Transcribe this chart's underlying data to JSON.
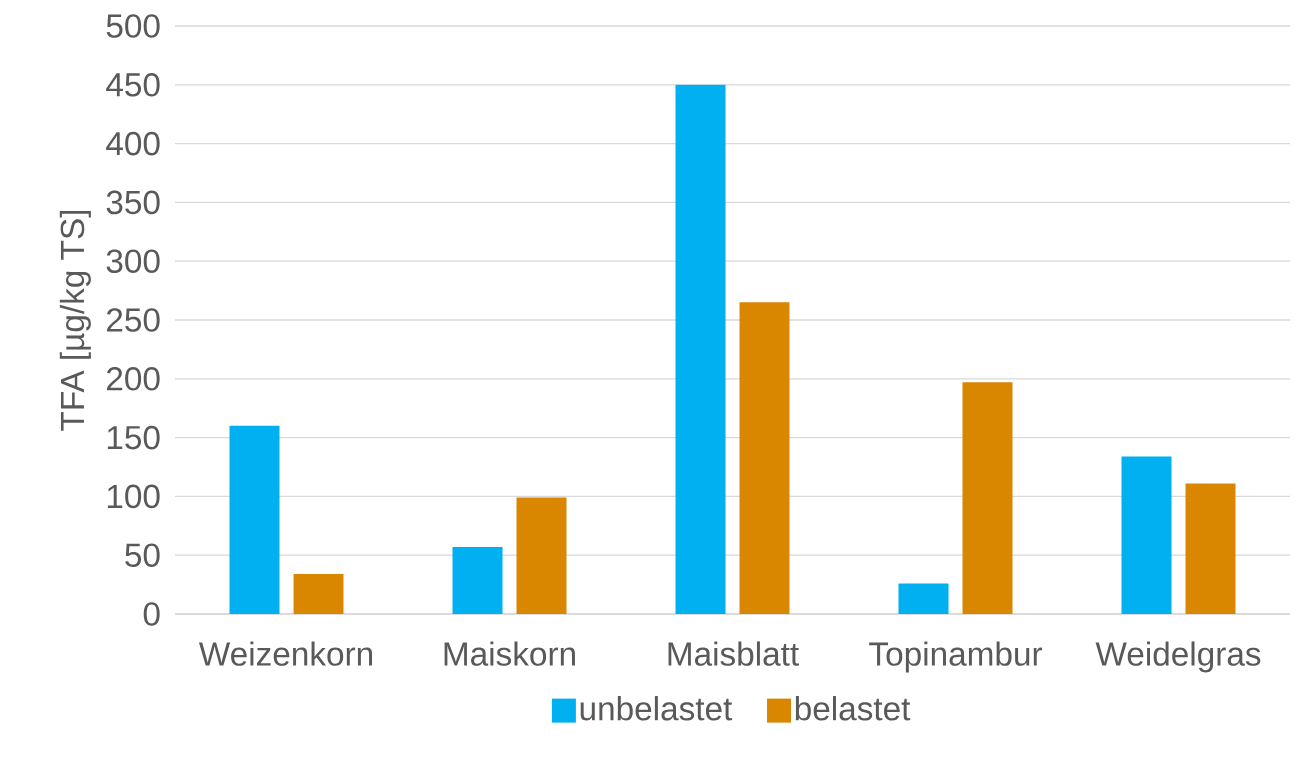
{
  "chart_data": {
    "type": "bar",
    "ylabel": "TFA  [µg/kg TS]",
    "categories": [
      "Weizenkorn",
      "Maiskorn",
      "Maisblatt",
      "Topinambur",
      "Weidelgras"
    ],
    "series": [
      {
        "name": "unbelastet",
        "color": "#00b0f0",
        "values": [
          160,
          57,
          450,
          26,
          134
        ]
      },
      {
        "name": "belastet",
        "color": "#d98600",
        "values": [
          34,
          99,
          265,
          197,
          111
        ]
      }
    ],
    "ylim": [
      0,
      500
    ],
    "yticks": [
      0,
      50,
      100,
      150,
      200,
      250,
      300,
      350,
      400,
      450,
      500
    ],
    "grid": "y",
    "legend": "bottom"
  }
}
